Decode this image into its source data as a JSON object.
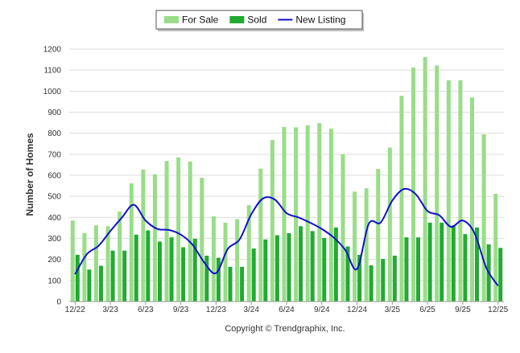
{
  "colors": {
    "for_sale": "#99dd88",
    "sold": "#22aa33",
    "new_listing": "#1111cc",
    "grid": "#dddddd",
    "axis_text": "#333333"
  },
  "footer": {
    "copyright": "Copyright © Trendgraphix, Inc."
  },
  "chart_data": {
    "type": "bar",
    "ylabel": "Number of Homes",
    "xlabel": "",
    "ylim": [
      0,
      1200
    ],
    "yticks": [
      0,
      100,
      200,
      300,
      400,
      500,
      600,
      700,
      800,
      900,
      1000,
      1100,
      1200
    ],
    "grid": true,
    "legend_position": "top-center",
    "categories": [
      "12/22",
      "1/23",
      "2/23",
      "3/23",
      "4/23",
      "5/23",
      "6/23",
      "7/23",
      "8/23",
      "9/23",
      "10/23",
      "11/23",
      "12/23",
      "1/24",
      "2/24",
      "3/24",
      "4/24",
      "5/24",
      "6/24",
      "7/24",
      "8/24",
      "9/24",
      "10/24",
      "11/24",
      "12/24",
      "1/25",
      "2/25",
      "3/25",
      "4/25",
      "5/25",
      "6/25",
      "7/25",
      "8/25",
      "9/25",
      "10/25",
      "11/25",
      "12/25"
    ],
    "x_tick_labels": [
      "12/22",
      "3/23",
      "6/23",
      "9/23",
      "12/23",
      "3/24",
      "6/24",
      "9/24",
      "12/24",
      "3/25",
      "6/25",
      "9/25",
      "12/25"
    ],
    "series": [
      {
        "name": "For Sale",
        "type": "bar",
        "values": [
          385,
          325,
          362,
          358,
          428,
          562,
          628,
          605,
          668,
          685,
          665,
          588,
          405,
          375,
          392,
          458,
          632,
          768,
          830,
          828,
          838,
          848,
          822,
          700,
          522,
          538,
          630,
          732,
          978,
          1112,
          1162,
          1122,
          1052,
          1052,
          970,
          795,
          512
        ]
      },
      {
        "name": "Sold",
        "type": "bar",
        "values": [
          222,
          152,
          170,
          242,
          242,
          318,
          338,
          285,
          305,
          258,
          298,
          218,
          208,
          165,
          165,
          252,
          295,
          315,
          325,
          358,
          335,
          302,
          352,
          262,
          222,
          172,
          202,
          218,
          305,
          305,
          375,
          375,
          362,
          320,
          352,
          272,
          255
        ]
      },
      {
        "name": "New Listing",
        "type": "line",
        "values": [
          130,
          225,
          265,
          335,
          400,
          460,
          385,
          345,
          340,
          318,
          270,
          185,
          135,
          250,
          295,
          415,
          490,
          485,
          420,
          400,
          375,
          345,
          305,
          245,
          155,
          370,
          375,
          480,
          535,
          510,
          430,
          410,
          355,
          385,
          325,
          160,
          75
        ]
      }
    ]
  }
}
